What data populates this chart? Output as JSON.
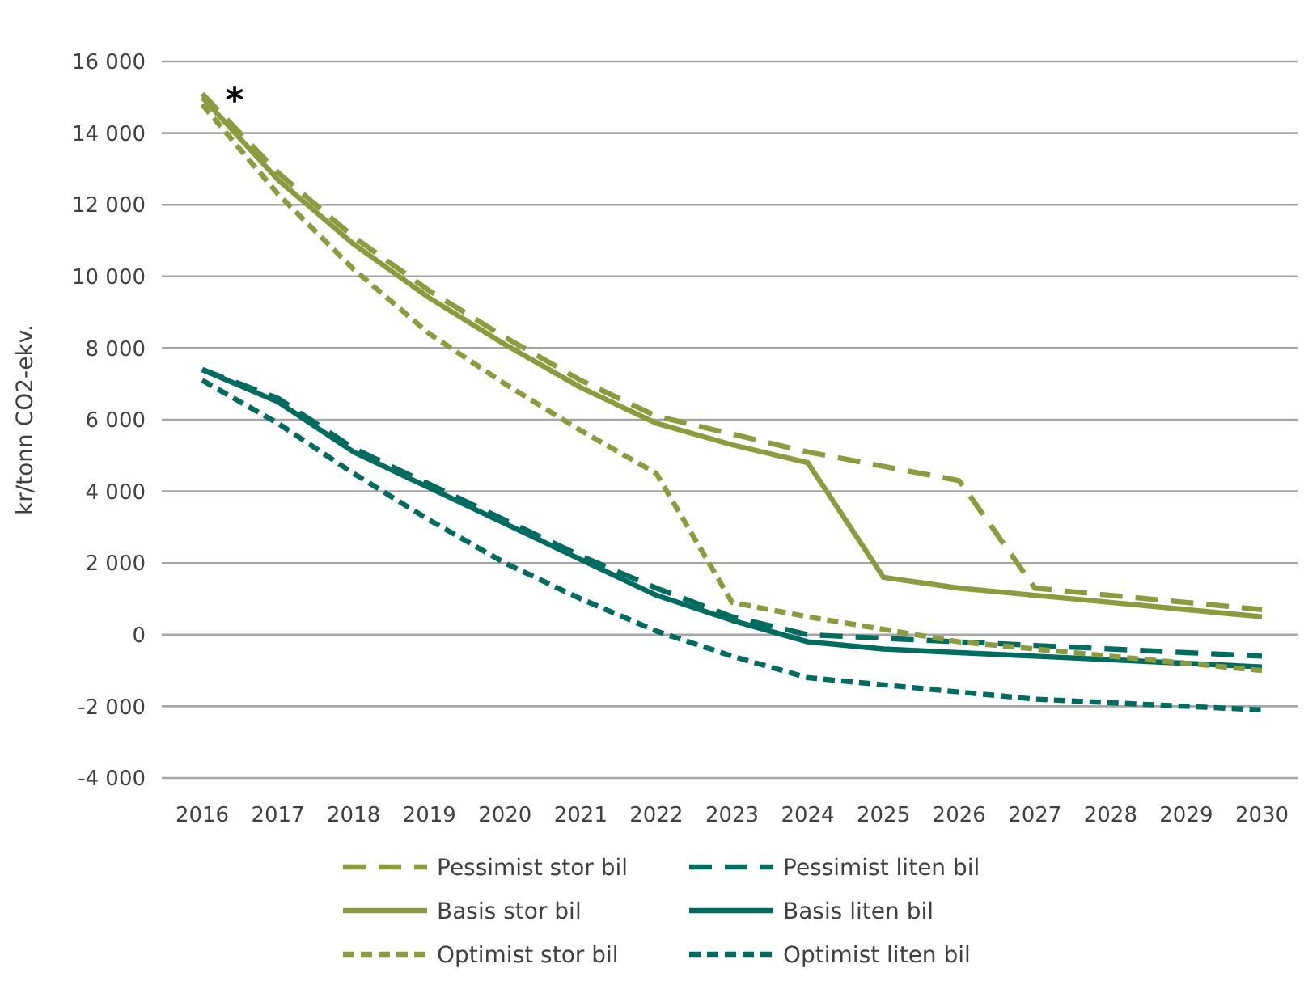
{
  "chart_data": {
    "type": "line",
    "ylabel": "kr/tonn CO2-ekv.",
    "categories": [
      "2016",
      "2017",
      "2018",
      "2019",
      "2020",
      "2021",
      "2022",
      "2023",
      "2024",
      "2025",
      "2026",
      "2027",
      "2028",
      "2029",
      "2030"
    ],
    "ylim": [
      -4000,
      16000
    ],
    "yticks": [
      {
        "value": -4000,
        "label": "-4 000"
      },
      {
        "value": -2000,
        "label": "-2 000"
      },
      0,
      {
        "value": 2000,
        "label": "2 000"
      },
      {
        "value": 4000,
        "label": "4 000"
      },
      {
        "value": 6000,
        "label": "6 000"
      },
      {
        "value": 8000,
        "label": "8 000"
      },
      {
        "value": 10000,
        "label": "10 000"
      },
      {
        "value": 12000,
        "label": "12 000"
      },
      {
        "value": 14000,
        "label": "14 000"
      },
      {
        "value": 16000,
        "label": "16 000"
      }
    ],
    "grid": "y",
    "legend": "bottom",
    "marker": "none",
    "annotations": [
      "*"
    ],
    "series": [
      {
        "name": "Pessimist stor bil",
        "color": "#8c9b3e",
        "line_style": "dashed",
        "values": [
          15100,
          12900,
          11100,
          9600,
          8300,
          7100,
          6100,
          5600,
          5100,
          4700,
          4300,
          1300,
          1100,
          900,
          700
        ]
      },
      {
        "name": "Pessimist liten bil",
        "color": "#006b5f",
        "line_style": "dashed",
        "values": [
          7400,
          6600,
          5200,
          4200,
          3200,
          2200,
          1300,
          500,
          0,
          -100,
          -200,
          -300,
          -400,
          -500,
          -600
        ]
      },
      {
        "name": "Basis stor bil",
        "color": "#8c9b3e",
        "line_style": "solid",
        "values": [
          15000,
          12700,
          10900,
          9400,
          8100,
          6900,
          5900,
          5300,
          4800,
          1600,
          1300,
          1100,
          900,
          700,
          500
        ]
      },
      {
        "name": "Basis liten bil",
        "color": "#006b5f",
        "line_style": "solid",
        "values": [
          7400,
          6500,
          5100,
          4100,
          3100,
          2100,
          1100,
          400,
          -200,
          -400,
          -500,
          -600,
          -700,
          -800,
          -900
        ]
      },
      {
        "name": "Optimist stor bil",
        "color": "#8c9b3e",
        "line_style": "dotted",
        "values": [
          14800,
          12300,
          10200,
          8400,
          7000,
          5700,
          4500,
          900,
          500,
          150,
          -200,
          -400,
          -600,
          -800,
          -1000
        ]
      },
      {
        "name": "Optimist liten bil",
        "color": "#006b5f",
        "line_style": "dotted",
        "values": [
          7100,
          5900,
          4500,
          3200,
          2000,
          1000,
          100,
          -600,
          -1200,
          -1400,
          -1600,
          -1800,
          -1900,
          -2000,
          -2100
        ]
      }
    ]
  }
}
